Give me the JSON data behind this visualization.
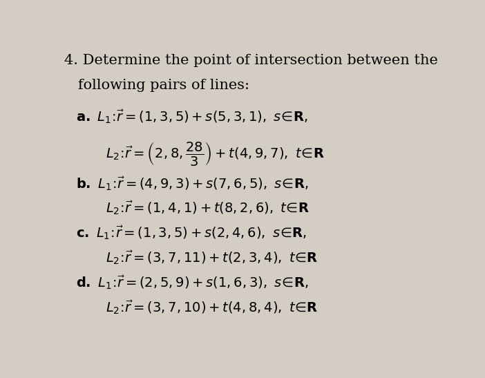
{
  "bg_color": "#d4cdc3",
  "text_color": "#000000",
  "title_fontsize": 15,
  "math_fontsize": 14,
  "figsize": [
    7.02,
    5.47
  ],
  "dpi": 100
}
